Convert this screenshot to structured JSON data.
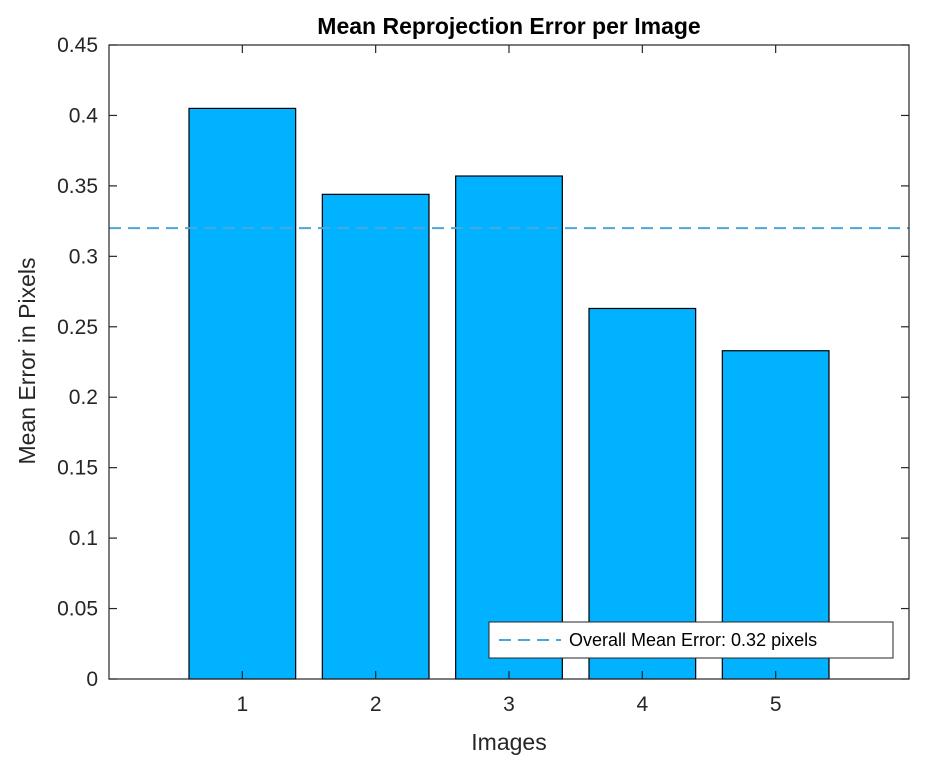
{
  "chart_data": {
    "type": "bar",
    "title": "Mean Reprojection Error per Image",
    "xlabel": "Images",
    "ylabel": "Mean Error in Pixels",
    "categories": [
      "1",
      "2",
      "3",
      "4",
      "5"
    ],
    "values": [
      0.405,
      0.344,
      0.357,
      0.263,
      0.233
    ],
    "ylim": [
      0,
      0.45
    ],
    "xlim": [
      0,
      6
    ],
    "yticks": [
      0,
      0.05,
      0.1,
      0.15,
      0.2,
      0.25,
      0.3,
      0.35,
      0.4,
      0.45
    ],
    "ytick_labels": [
      "0",
      "0.05",
      "0.1",
      "0.15",
      "0.2",
      "0.25",
      "0.3",
      "0.35",
      "0.4",
      "0.45"
    ],
    "grid": false,
    "bar_color": "#00B2FF",
    "bar_edge_color": "#000000",
    "reference_line": {
      "y": 0.32,
      "style": "dashed",
      "color": "#4DA6D9",
      "label": "Overall Mean Error: 0.32 pixels"
    },
    "legend": {
      "position": "bottom-right",
      "entries": [
        "Overall Mean Error: 0.32 pixels"
      ]
    }
  }
}
